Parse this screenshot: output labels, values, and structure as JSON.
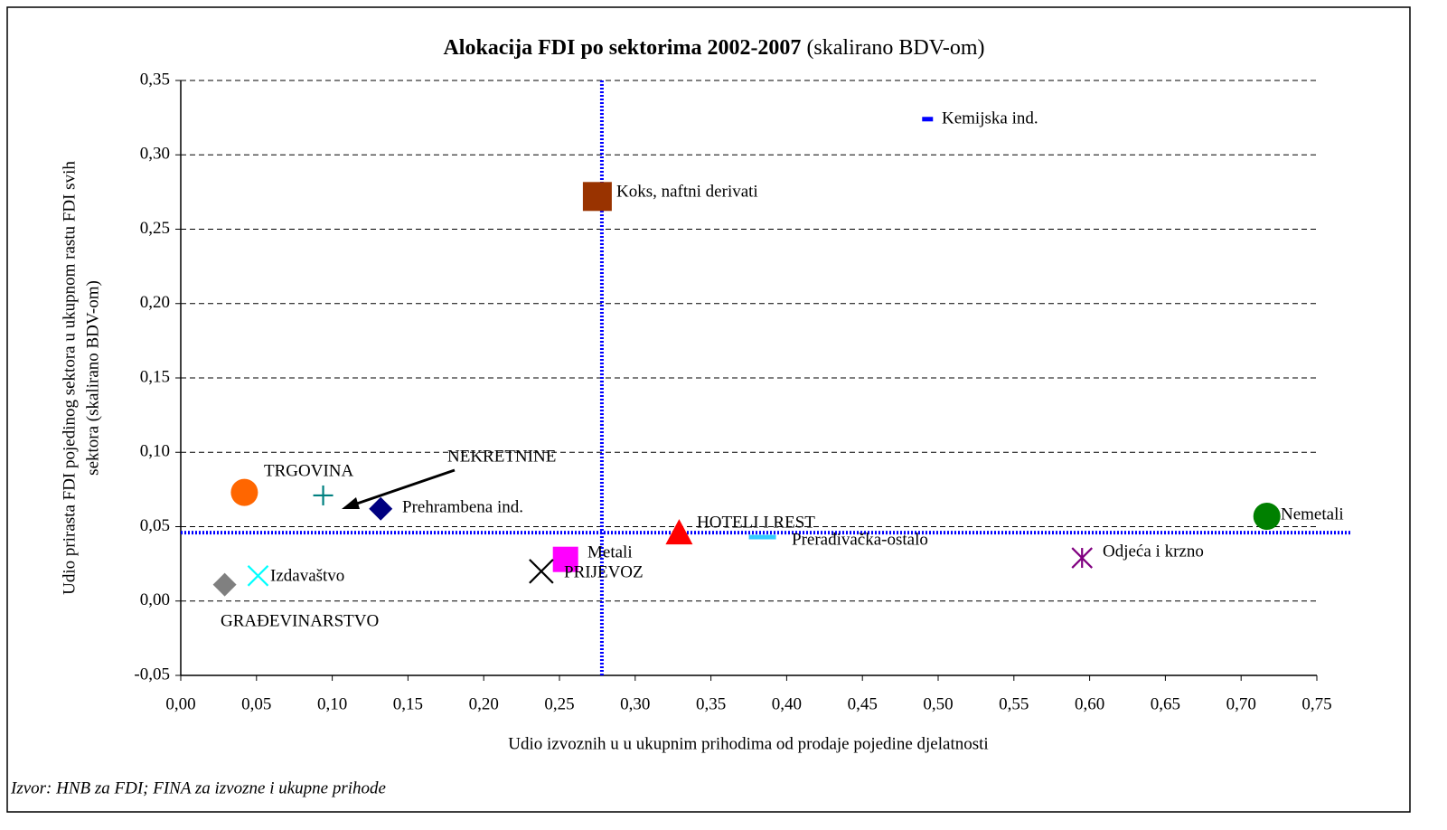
{
  "chart_data": {
    "type": "scatter",
    "title": "Alokacija  FDI po sektorima 2002-2007",
    "title_suffix": "(skalirano BDV-om)",
    "x_label": "Udio izvoznih u u ukupnim prihodima od prodaje pojedine djelatnosti",
    "y_label": [
      "Udio prirasta FDI pojedinog sektora u ukupnom rastu FDI svih",
      "sektora (skalirano BDV-om)"
    ],
    "source": "Izvor: HNB za FDI; FINA za izvozne i ukupne prihode",
    "xlim": [
      0,
      0.75
    ],
    "ylim": [
      -0.05,
      0.35
    ],
    "xticks": [
      {
        "value": 0,
        "label": "0,00"
      },
      {
        "value": 0.05,
        "label": "0,05"
      },
      {
        "value": 0.1,
        "label": "0,10"
      },
      {
        "value": 0.15,
        "label": "0,15"
      },
      {
        "value": 0.2,
        "label": "0,20"
      },
      {
        "value": 0.25,
        "label": "0,25"
      },
      {
        "value": 0.3,
        "label": "0,30"
      },
      {
        "value": 0.35,
        "label": "0,35"
      },
      {
        "value": 0.4,
        "label": "0,40"
      },
      {
        "value": 0.45,
        "label": "0,45"
      },
      {
        "value": 0.5,
        "label": "0,50"
      },
      {
        "value": 0.55,
        "label": "0,55"
      },
      {
        "value": 0.6,
        "label": "0,60"
      },
      {
        "value": 0.65,
        "label": "0,65"
      },
      {
        "value": 0.7,
        "label": "0,70"
      },
      {
        "value": 0.75,
        "label": "0,75"
      }
    ],
    "yticks": [
      {
        "value": -0.05,
        "label": "-0,05"
      },
      {
        "value": 0,
        "label": "0,00"
      },
      {
        "value": 0.05,
        "label": "0,05"
      },
      {
        "value": 0.1,
        "label": "0,10"
      },
      {
        "value": 0.15,
        "label": "0,15"
      },
      {
        "value": 0.2,
        "label": "0,20"
      },
      {
        "value": 0.25,
        "label": "0,25"
      },
      {
        "value": 0.3,
        "label": "0,30"
      },
      {
        "value": 0.35,
        "label": "0,35"
      }
    ],
    "grid": true,
    "reference_lines": {
      "x": 0.278,
      "y": 0.046,
      "color": "#0000ff"
    },
    "series": [
      {
        "name": "Kemijska ind.",
        "x": 0.493,
        "y": 0.324,
        "color": "#0000ff",
        "marker": "dash"
      },
      {
        "name": "Koks, naftni derivati",
        "x": 0.275,
        "y": 0.272,
        "color": "#993300",
        "marker": "square"
      },
      {
        "name": "TRGOVINA",
        "x": 0.042,
        "y": 0.073,
        "color": "#ff6600",
        "marker": "circle"
      },
      {
        "name": "NEKRETNINE",
        "x": 0.094,
        "y": 0.071,
        "color": "#008080",
        "marker": "plus"
      },
      {
        "name": "Prehrambena ind.",
        "x": 0.132,
        "y": 0.062,
        "color": "#000080",
        "marker": "diamond"
      },
      {
        "name": "Izdavaštvo",
        "x": 0.051,
        "y": 0.017,
        "color": "#00ffff",
        "marker": "x"
      },
      {
        "name": "GRAĐEVINARSTVO",
        "x": 0.029,
        "y": 0.011,
        "color": "#808080",
        "marker": "diamond"
      },
      {
        "name": "Metali",
        "x": 0.254,
        "y": 0.028,
        "color": "#ff00ff",
        "marker": "square"
      },
      {
        "name": "PRIJEVOZ",
        "x": 0.238,
        "y": 0.02,
        "color": "#000000",
        "marker": "x"
      },
      {
        "name": "HOTELI I REST",
        "x": 0.329,
        "y": 0.046,
        "color": "#ff0000",
        "marker": "triangle"
      },
      {
        "name": "Prerađivačka-ostalo",
        "x": 0.384,
        "y": 0.043,
        "color": "#33ccff",
        "marker": "dash"
      },
      {
        "name": "Odjeća i krzno",
        "x": 0.595,
        "y": 0.029,
        "color": "#800080",
        "marker": "asterisk"
      },
      {
        "name": "Nemetali",
        "x": 0.717,
        "y": 0.057,
        "color": "#008000",
        "marker": "circle"
      }
    ]
  }
}
